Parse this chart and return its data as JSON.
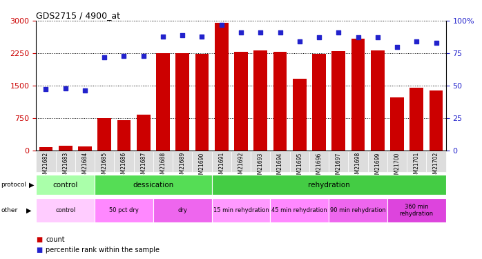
{
  "title": "GDS2715 / 4900_at",
  "samples": [
    "GSM21682",
    "GSM21683",
    "GSM21684",
    "GSM21685",
    "GSM21686",
    "GSM21687",
    "GSM21688",
    "GSM21689",
    "GSM21690",
    "GSM21691",
    "GSM21692",
    "GSM21693",
    "GSM21694",
    "GSM21695",
    "GSM21696",
    "GSM21697",
    "GSM21698",
    "GSM21699",
    "GSM21700",
    "GSM21701",
    "GSM21702"
  ],
  "counts": [
    70,
    100,
    90,
    750,
    700,
    820,
    2250,
    2250,
    2230,
    2960,
    2280,
    2320,
    2280,
    1650,
    2240,
    2290,
    2590,
    2310,
    1230,
    1450,
    1390
  ],
  "percentiles": [
    47,
    48,
    46,
    72,
    73,
    73,
    88,
    89,
    88,
    97,
    91,
    91,
    91,
    84,
    87,
    91,
    87,
    87,
    80,
    84,
    83
  ],
  "ylim_left": [
    0,
    3000
  ],
  "ylim_right": [
    0,
    100
  ],
  "yticks_left": [
    0,
    750,
    1500,
    2250,
    3000
  ],
  "yticks_right": [
    0,
    25,
    50,
    75,
    100
  ],
  "bar_color": "#cc0000",
  "dot_color": "#2222cc",
  "protocol_groups": [
    {
      "label": "control",
      "start": 0,
      "end": 3,
      "color": "#aaffaa"
    },
    {
      "label": "dessication",
      "start": 3,
      "end": 9,
      "color": "#55dd55"
    },
    {
      "label": "rehydration",
      "start": 9,
      "end": 21,
      "color": "#44cc44"
    }
  ],
  "other_groups": [
    {
      "label": "control",
      "start": 0,
      "end": 3,
      "color": "#ffccff"
    },
    {
      "label": "50 pct dry",
      "start": 3,
      "end": 6,
      "color": "#ff88ff"
    },
    {
      "label": "dry",
      "start": 6,
      "end": 9,
      "color": "#ee66ee"
    },
    {
      "label": "15 min rehydration",
      "start": 9,
      "end": 12,
      "color": "#ff99ff"
    },
    {
      "label": "45 min rehydration",
      "start": 12,
      "end": 15,
      "color": "#ff88ff"
    },
    {
      "label": "90 min rehydration",
      "start": 15,
      "end": 18,
      "color": "#ee66ee"
    },
    {
      "label": "360 min\nrehydration",
      "start": 18,
      "end": 21,
      "color": "#dd44dd"
    }
  ]
}
